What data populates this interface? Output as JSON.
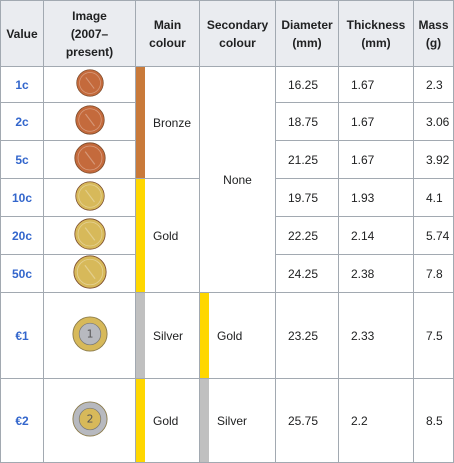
{
  "headers": {
    "value": "Value",
    "image": "Image\n(2007–\npresent)",
    "main_colour": "Main\ncolour",
    "secondary_colour": "Secondary\ncolour",
    "diameter": "Diameter\n(mm)",
    "thickness": "Thickness\n(mm)",
    "mass": "Mass\n(g)"
  },
  "rows": [
    {
      "value": "1c",
      "diameter": "16.25",
      "thickness": "1.67",
      "mass": "2.3"
    },
    {
      "value": "2c",
      "diameter": "18.75",
      "thickness": "1.67",
      "mass": "3.06"
    },
    {
      "value": "5c",
      "diameter": "21.25",
      "thickness": "1.67",
      "mass": "3.92"
    },
    {
      "value": "10c",
      "diameter": "19.75",
      "thickness": "1.93",
      "mass": "4.1"
    },
    {
      "value": "20c",
      "diameter": "22.25",
      "thickness": "2.14",
      "mass": "5.74"
    },
    {
      "value": "50c",
      "diameter": "24.25",
      "thickness": "2.38",
      "mass": "7.8"
    },
    {
      "value": "€1",
      "diameter": "23.25",
      "thickness": "2.33",
      "mass": "7.5"
    },
    {
      "value": "€2",
      "diameter": "25.75",
      "thickness": "2.2",
      "mass": "8.5"
    }
  ],
  "main_colour_groups": [
    {
      "label": "Bronze",
      "color": "#c97a3a"
    },
    {
      "label": "Gold",
      "color": "#ffd700"
    },
    {
      "label": "Silver",
      "color": "#c0c0c0"
    },
    {
      "label": "Gold",
      "color": "#ffd700"
    }
  ],
  "secondary_colour": {
    "none_label": "None",
    "euro1_label": "Gold",
    "euro1_color": "#ffd700",
    "euro2_label": "Silver",
    "euro2_color": "#c0c0c0"
  },
  "colors": {
    "link_blue": "#3366cc",
    "header_bg": "#eaecf0",
    "border": "#a2a9b1",
    "bronze_coin": "#c46a3c",
    "gold_coin": "#d7b95a",
    "silver_coin": "#b7b9bf"
  }
}
